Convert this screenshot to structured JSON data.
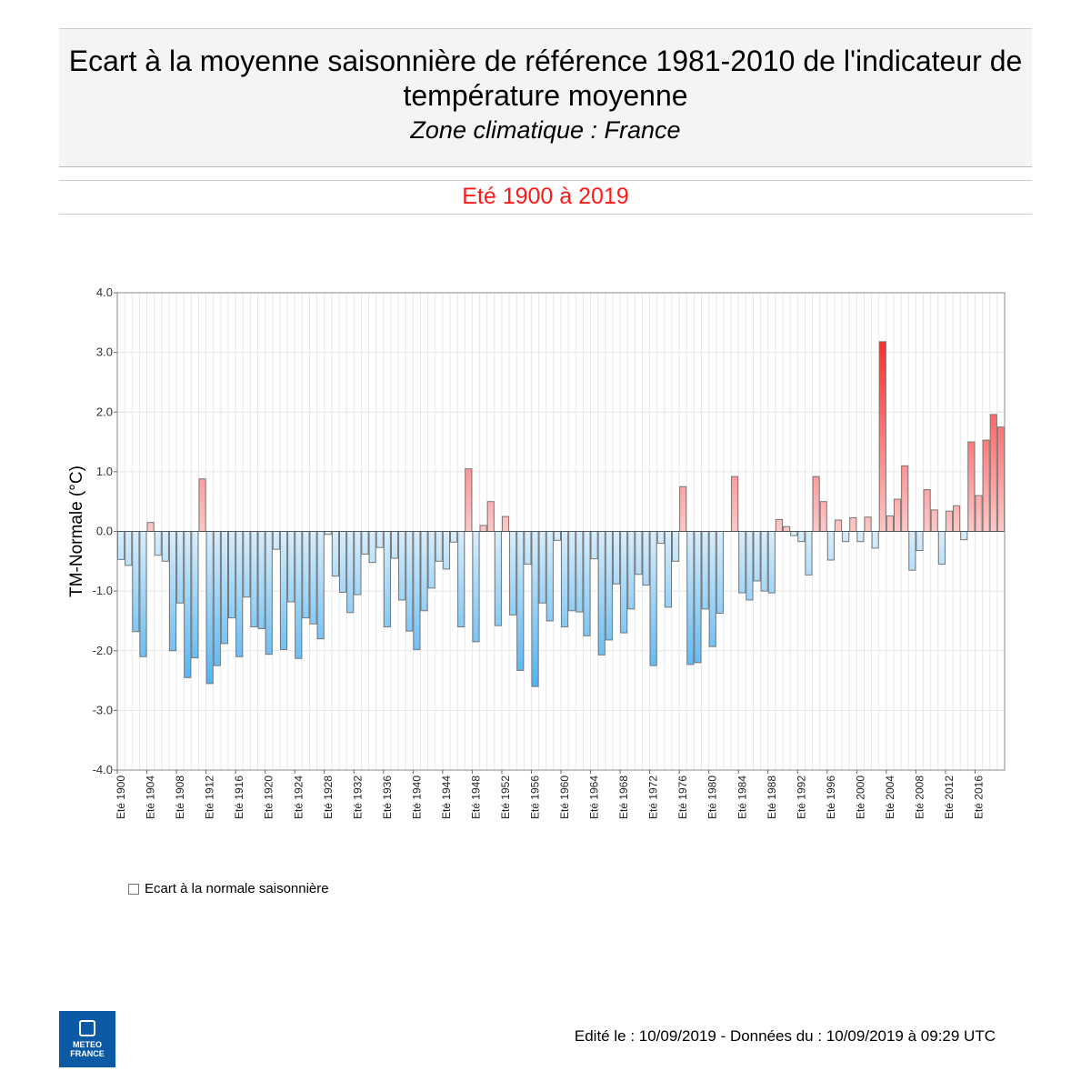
{
  "header": {
    "title": "Ecart à la moyenne saisonnière de référence 1981-2010 de l'indicateur de température moyenne",
    "subtitle": "Zone climatique : France"
  },
  "period": {
    "label": "Eté 1900 à 2019",
    "color": "#ff1a1a"
  },
  "legend": {
    "label": "Ecart à la normale saisonnière"
  },
  "logo": {
    "text_line1": "METEO",
    "text_line2": "FRANCE",
    "color": "#0c5aa6"
  },
  "footer": {
    "text": "Edité le : 10/09/2019 - Données du : 10/09/2019 à 09:29 UTC"
  },
  "chart_data": {
    "type": "bar",
    "title": "",
    "xlabel": "",
    "ylabel": "TM-Normale (°C)",
    "ylim": [
      -4.0,
      4.0
    ],
    "yticks": [
      "4.0",
      "3.0",
      "2.0",
      "1.0",
      "0.0",
      "-1.0",
      "-2.0",
      "-3.0",
      "-4.0"
    ],
    "grid": true,
    "category_prefix": "Eté",
    "x_start": 1900,
    "x_end": 2019,
    "tick_every": 4,
    "colors": {
      "positive_low": "#ffc8c8",
      "positive_high": "#ff2a2a",
      "negative_low": "#d8eefc",
      "negative_high": "#4fb3f5"
    },
    "values": [
      -0.47,
      -0.57,
      -1.68,
      -2.1,
      0.15,
      -0.4,
      -0.5,
      -2.0,
      -1.2,
      -2.45,
      -2.12,
      0.88,
      -2.55,
      -2.25,
      -1.88,
      -1.45,
      -2.1,
      -1.1,
      -1.6,
      -1.63,
      -2.06,
      -0.3,
      -1.98,
      -1.18,
      -2.13,
      -1.45,
      -1.55,
      -1.8,
      -0.05,
      -0.75,
      -1.02,
      -1.36,
      -1.06,
      -0.38,
      -0.52,
      -0.27,
      -1.6,
      -0.45,
      -1.15,
      -1.67,
      -1.98,
      -1.33,
      -0.95,
      -0.5,
      -0.63,
      -0.18,
      -1.6,
      1.05,
      -1.85,
      0.1,
      0.5,
      -1.58,
      0.25,
      -1.4,
      -2.33,
      -0.55,
      -2.6,
      -1.2,
      -1.5,
      -0.15,
      -1.6,
      -1.33,
      -1.35,
      -1.75,
      -0.46,
      -2.07,
      -1.82,
      -0.88,
      -1.7,
      -1.3,
      -0.72,
      -0.9,
      -2.25,
      -0.2,
      -1.27,
      -0.5,
      0.75,
      -2.23,
      -2.2,
      -1.3,
      -1.93,
      -1.37,
      0.0,
      0.92,
      -1.03,
      -1.15,
      -0.83,
      -1.0,
      -1.03,
      0.2,
      0.08,
      -0.07,
      -0.17,
      -0.73,
      0.92,
      0.5,
      -0.48,
      0.19,
      -0.17,
      0.23,
      -0.17,
      0.24,
      -0.28,
      3.18,
      0.26,
      0.54,
      1.1,
      -0.65,
      -0.32,
      0.7,
      0.36,
      -0.55,
      0.34,
      0.43,
      -0.14,
      1.5,
      0.6,
      1.53,
      1.96,
      1.75
    ]
  }
}
